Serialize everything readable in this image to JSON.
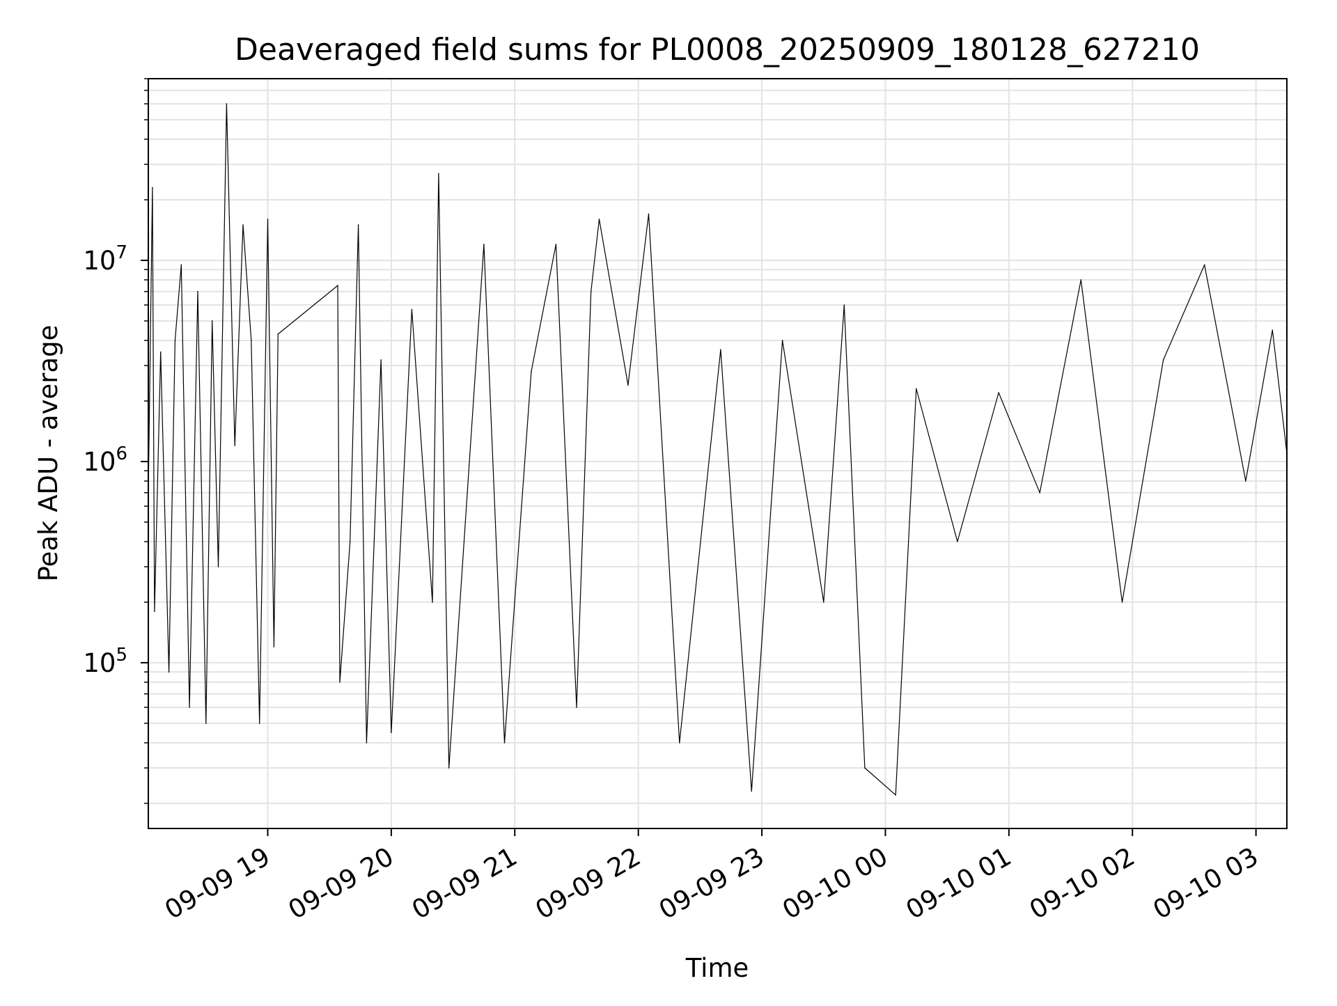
{
  "chart_data": {
    "type": "line",
    "title": "Deaveraged field sums for PL0008_20250909_180128_627210",
    "xlabel": "Time",
    "ylabel": "Peak ADU - average",
    "yscale": "log",
    "ylim": [
      15000,
      80000000
    ],
    "xlim": [
      "2025-09-09 18:02",
      "2025-09-10 03:15"
    ],
    "grid": true,
    "x_ticks": [
      {
        "t": "2025-09-09 19:00",
        "label": "09-09 19"
      },
      {
        "t": "2025-09-09 20:00",
        "label": "09-09 20"
      },
      {
        "t": "2025-09-09 21:00",
        "label": "09-09 21"
      },
      {
        "t": "2025-09-09 22:00",
        "label": "09-09 22"
      },
      {
        "t": "2025-09-09 23:00",
        "label": "09-09 23"
      },
      {
        "t": "2025-09-10 00:00",
        "label": "09-10 00"
      },
      {
        "t": "2025-09-10 01:00",
        "label": "09-10 01"
      },
      {
        "t": "2025-09-10 02:00",
        "label": "09-10 02"
      },
      {
        "t": "2025-09-10 03:00",
        "label": "09-10 03"
      }
    ],
    "y_ticks": [
      {
        "value": 100000,
        "base": "10",
        "exp": "5"
      },
      {
        "value": 1000000,
        "base": "10",
        "exp": "6"
      },
      {
        "value": 10000000,
        "base": "10",
        "exp": "7"
      }
    ],
    "line_color": "#000000",
    "series": [
      {
        "points": [
          [
            "2025-09-09 18:02",
            700000
          ],
          [
            "2025-09-09 18:04",
            23000000
          ],
          [
            "2025-09-09 18:05",
            180000
          ],
          [
            "2025-09-09 18:08",
            3500000
          ],
          [
            "2025-09-09 18:12",
            90000
          ],
          [
            "2025-09-09 18:15",
            4000000
          ],
          [
            "2025-09-09 18:18",
            9500000
          ],
          [
            "2025-09-09 18:22",
            60000
          ],
          [
            "2025-09-09 18:26",
            7000000
          ],
          [
            "2025-09-09 18:30",
            50000
          ],
          [
            "2025-09-09 18:33",
            5000000
          ],
          [
            "2025-09-09 18:36",
            300000
          ],
          [
            "2025-09-09 18:40",
            60000000
          ],
          [
            "2025-09-09 18:44",
            1200000
          ],
          [
            "2025-09-09 18:48",
            15000000
          ],
          [
            "2025-09-09 18:52",
            4000000
          ],
          [
            "2025-09-09 18:56",
            50000
          ],
          [
            "2025-09-09 19:00",
            16000000
          ],
          [
            "2025-09-09 19:03",
            120000
          ],
          [
            "2025-09-09 19:05",
            4300000
          ],
          [
            "2025-09-09 19:34",
            7500000
          ],
          [
            "2025-09-09 19:35",
            80000
          ],
          [
            "2025-09-09 19:40",
            400000
          ],
          [
            "2025-09-09 19:44",
            15000000
          ],
          [
            "2025-09-09 19:48",
            40000
          ],
          [
            "2025-09-09 19:55",
            3200000
          ],
          [
            "2025-09-09 20:00",
            45000
          ],
          [
            "2025-09-09 20:10",
            5700000
          ],
          [
            "2025-09-09 20:20",
            200000
          ],
          [
            "2025-09-09 20:23",
            27000000
          ],
          [
            "2025-09-09 20:28",
            30000
          ],
          [
            "2025-09-09 20:45",
            12000000
          ],
          [
            "2025-09-09 20:55",
            40000
          ],
          [
            "2025-09-09 21:08",
            2800000
          ],
          [
            "2025-09-09 21:20",
            12000000
          ],
          [
            "2025-09-09 21:30",
            60000
          ],
          [
            "2025-09-09 21:37",
            7000000
          ],
          [
            "2025-09-09 21:41",
            16000000
          ],
          [
            "2025-09-09 21:55",
            2400000
          ],
          [
            "2025-09-09 22:05",
            17000000
          ],
          [
            "2025-09-09 22:20",
            40000
          ],
          [
            "2025-09-09 22:40",
            3600000
          ],
          [
            "2025-09-09 22:55",
            23000
          ],
          [
            "2025-09-09 23:10",
            4000000
          ],
          [
            "2025-09-09 23:30",
            200000
          ],
          [
            "2025-09-09 23:40",
            6000000
          ],
          [
            "2025-09-09 23:50",
            30000
          ],
          [
            "2025-09-10 00:05",
            22000
          ],
          [
            "2025-09-10 00:15",
            2300000
          ],
          [
            "2025-09-10 00:35",
            400000
          ],
          [
            "2025-09-10 00:55",
            2200000
          ],
          [
            "2025-09-10 01:15",
            700000
          ],
          [
            "2025-09-10 01:35",
            8000000
          ],
          [
            "2025-09-10 01:55",
            200000
          ],
          [
            "2025-09-10 02:15",
            3200000
          ],
          [
            "2025-09-10 02:35",
            9500000
          ],
          [
            "2025-09-10 02:55",
            800000
          ],
          [
            "2025-09-10 03:08",
            4500000
          ],
          [
            "2025-09-10 03:15",
            1100000
          ]
        ]
      }
    ]
  }
}
